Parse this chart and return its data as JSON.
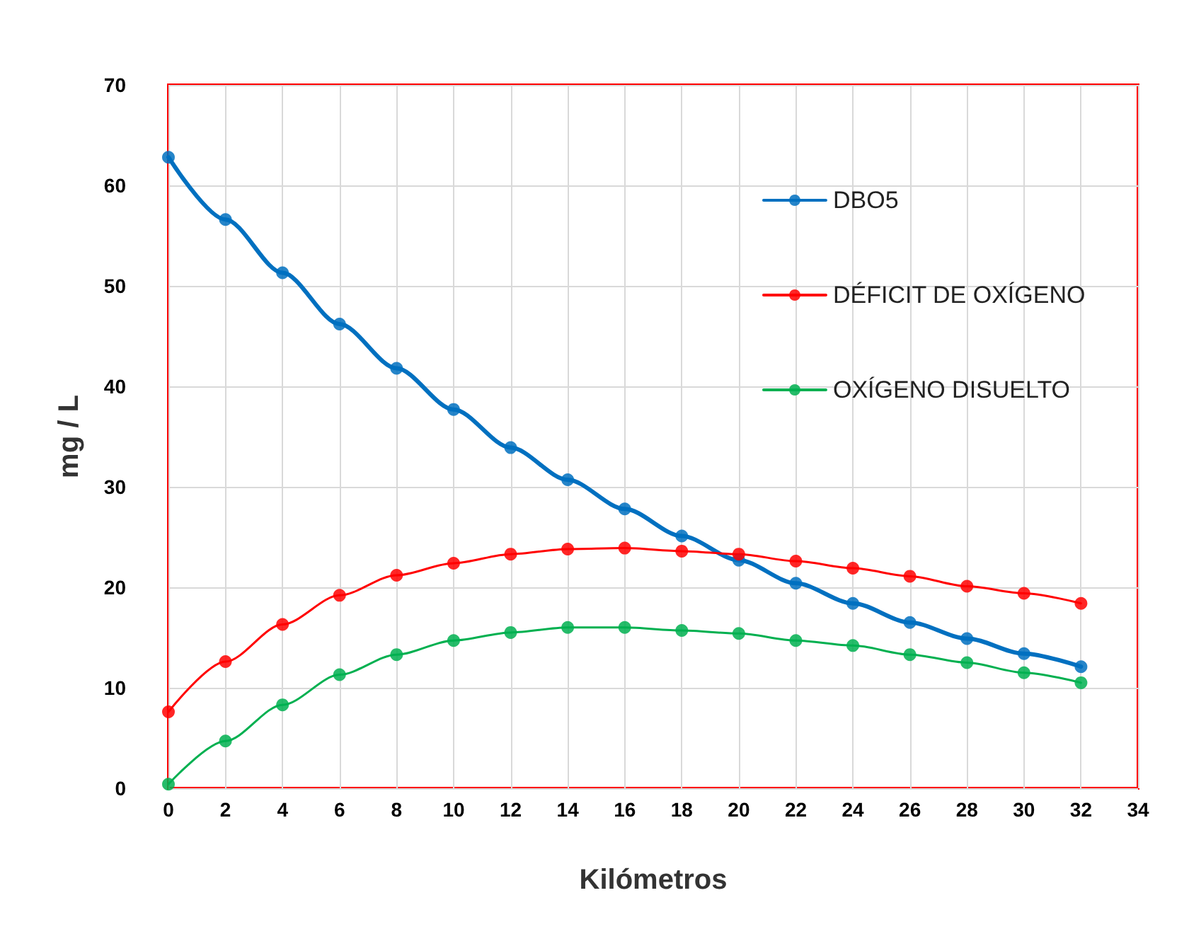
{
  "chart_data": {
    "type": "line",
    "xlabel": "Kilómetros",
    "ylabel": "mg / L",
    "x": [
      0,
      2,
      4,
      6,
      8,
      10,
      12,
      14,
      16,
      18,
      20,
      22,
      24,
      26,
      28,
      30,
      32
    ],
    "series": [
      {
        "name": "DBO5",
        "color": "#0070c0",
        "values": [
          62.8,
          56.6,
          51.3,
          46.2,
          41.8,
          37.7,
          33.9,
          30.7,
          27.8,
          25.1,
          22.7,
          20.4,
          18.4,
          16.5,
          14.9,
          13.4,
          12.1
        ]
      },
      {
        "name": "DÉFICIT DE OXÍGENO",
        "color": "#ff0000",
        "values": [
          7.6,
          12.6,
          16.3,
          19.2,
          21.2,
          22.4,
          23.3,
          23.8,
          23.9,
          23.6,
          23.3,
          22.6,
          21.9,
          21.1,
          20.1,
          19.4,
          18.4
        ]
      },
      {
        "name": "OXÍGENO DISUELTO",
        "color": "#00b050",
        "values": [
          0.4,
          4.7,
          8.3,
          11.3,
          13.3,
          14.7,
          15.5,
          16.0,
          16.0,
          15.7,
          15.4,
          14.7,
          14.2,
          13.3,
          12.5,
          11.5,
          10.5
        ]
      }
    ],
    "xlim": [
      0,
      34
    ],
    "xticks": [
      0,
      2,
      4,
      6,
      8,
      10,
      12,
      14,
      16,
      18,
      20,
      22,
      24,
      26,
      28,
      30,
      32,
      34
    ],
    "ylim": [
      0,
      70
    ],
    "yticks": [
      0,
      10,
      20,
      30,
      40,
      50,
      60,
      70
    ],
    "grid": true,
    "legend": "right",
    "marker": "circle",
    "line_style": "solid"
  }
}
